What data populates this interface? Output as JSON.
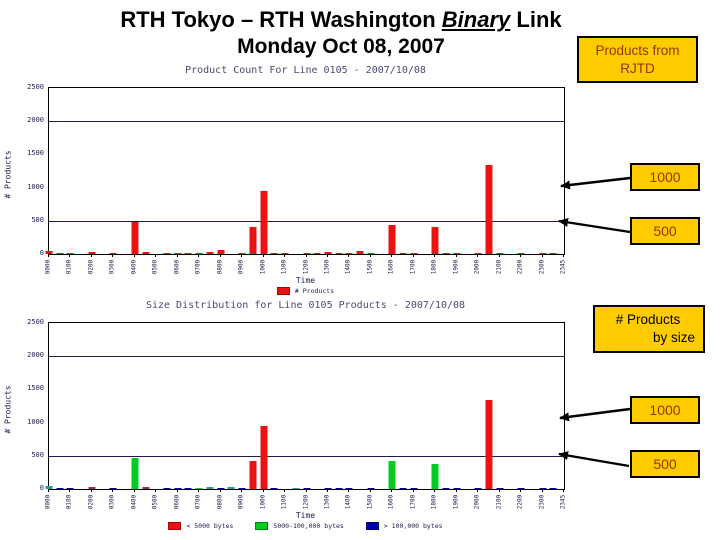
{
  "slide": {
    "title_prefix": "RTH Tokyo – RTH Washington ",
    "title_emphasis": "Binary",
    "title_suffix": " Link",
    "subtitle": "Monday Oct 08, 2007"
  },
  "annotations": {
    "products_from": {
      "line1": "Products from",
      "line2": "RJTD"
    },
    "count_1000_top": "1000",
    "count_500_top": "500",
    "by_size": {
      "line1": "# Products",
      "line2": "by size"
    },
    "count_1000_bottom": "1000",
    "count_500_bottom": "500",
    "box_fill": "#FFCC00",
    "box_text_color": "#993300"
  },
  "palette": {
    "red": "#EE1111",
    "green": "#00CC22",
    "blue": "#0000AA",
    "maroon": "#993344",
    "teal": "#2F9999"
  },
  "chart_data": [
    {
      "type": "bar",
      "title": "Product Count For Line 0105 - 2007/10/08",
      "xlabel": "Time",
      "ylabel": "# Products",
      "ylim": [
        0,
        2500
      ],
      "yticks": [
        0,
        500,
        1000,
        1500,
        2000,
        2500
      ],
      "gridlines": [
        500,
        2000
      ],
      "x_ticks": [
        "0000",
        "0100",
        "0200",
        "0300",
        "0400",
        "0500",
        "0600",
        "0700",
        "0800",
        "0900",
        "1000",
        "1100",
        "1200",
        "1300",
        "1400",
        "1500",
        "1600",
        "1700",
        "1800",
        "1900",
        "2000",
        "2100",
        "2200",
        "2300",
        "2345"
      ],
      "legend": [
        {
          "label": "# Products",
          "color": "red"
        }
      ],
      "bars": [
        {
          "time": "0000",
          "value": 45,
          "color": "red"
        },
        {
          "time": "0030",
          "value": 22,
          "color": "red"
        },
        {
          "time": "0100",
          "value": 18,
          "color": "red"
        },
        {
          "time": "0200",
          "value": 35,
          "color": "red"
        },
        {
          "time": "0300",
          "value": 10,
          "color": "red"
        },
        {
          "time": "0400",
          "value": 480,
          "color": "red"
        },
        {
          "time": "0430",
          "value": 35,
          "color": "red"
        },
        {
          "time": "0530",
          "value": 8,
          "color": "red"
        },
        {
          "time": "0600",
          "value": 15,
          "color": "red"
        },
        {
          "time": "0630",
          "value": 12,
          "color": "red"
        },
        {
          "time": "0700",
          "value": 18,
          "color": "red"
        },
        {
          "time": "0730",
          "value": 30,
          "color": "red"
        },
        {
          "time": "0800",
          "value": 55,
          "color": "red"
        },
        {
          "time": "0900",
          "value": 18,
          "color": "red"
        },
        {
          "time": "0930",
          "value": 400,
          "color": "red"
        },
        {
          "time": "1000",
          "value": 950,
          "color": "red"
        },
        {
          "time": "1030",
          "value": 12,
          "color": "red"
        },
        {
          "time": "1100",
          "value": 10,
          "color": "red"
        },
        {
          "time": "1200",
          "value": 18,
          "color": "red"
        },
        {
          "time": "1230",
          "value": 12,
          "color": "red"
        },
        {
          "time": "1300",
          "value": 28,
          "color": "red"
        },
        {
          "time": "1330",
          "value": 18,
          "color": "red"
        },
        {
          "time": "1400",
          "value": 12,
          "color": "red"
        },
        {
          "time": "1430",
          "value": 40,
          "color": "red"
        },
        {
          "time": "1500",
          "value": 18,
          "color": "red"
        },
        {
          "time": "1600",
          "value": 430,
          "color": "red"
        },
        {
          "time": "1630",
          "value": 18,
          "color": "red"
        },
        {
          "time": "1700",
          "value": 12,
          "color": "red"
        },
        {
          "time": "1800",
          "value": 400,
          "color": "red"
        },
        {
          "time": "1830",
          "value": 18,
          "color": "red"
        },
        {
          "time": "1900",
          "value": 8,
          "color": "red"
        },
        {
          "time": "2000",
          "value": 12,
          "color": "red"
        },
        {
          "time": "2030",
          "value": 1340,
          "color": "red"
        },
        {
          "time": "2100",
          "value": 10,
          "color": "red"
        },
        {
          "time": "2200",
          "value": 12,
          "color": "red"
        },
        {
          "time": "2300",
          "value": 18,
          "color": "red"
        },
        {
          "time": "2330",
          "value": 12,
          "color": "red"
        }
      ]
    },
    {
      "type": "bar",
      "title": "Size Distribution for Line 0105 Products - 2007/10/08",
      "xlabel": "Time",
      "ylabel": "# Products",
      "ylim": [
        0,
        2500
      ],
      "yticks": [
        0,
        500,
        1000,
        1500,
        2000,
        2500
      ],
      "gridlines": [
        500,
        2000
      ],
      "x_ticks": [
        "0000",
        "0100",
        "0200",
        "0300",
        "0400",
        "0500",
        "0600",
        "0700",
        "0800",
        "0900",
        "1000",
        "1100",
        "1200",
        "1300",
        "1400",
        "1500",
        "1600",
        "1700",
        "1800",
        "1900",
        "2000",
        "2100",
        "2200",
        "2300",
        "2345"
      ],
      "legend": [
        {
          "label": "< 5000 bytes",
          "color": "red"
        },
        {
          "label": "5000-100,000 bytes",
          "color": "green"
        },
        {
          "label": "> 100,000 bytes",
          "color": "blue"
        }
      ],
      "bars": [
        {
          "time": "0000",
          "value": 40,
          "color": "teal"
        },
        {
          "time": "0030",
          "value": 15,
          "color": "blue"
        },
        {
          "time": "0100",
          "value": 10,
          "color": "blue"
        },
        {
          "time": "0200",
          "value": 35,
          "color": "maroon"
        },
        {
          "time": "0300",
          "value": 10,
          "color": "blue"
        },
        {
          "time": "0400",
          "value": 467,
          "color": "green"
        },
        {
          "time": "0430",
          "value": 35,
          "color": "maroon"
        },
        {
          "time": "0530",
          "value": 10,
          "color": "blue"
        },
        {
          "time": "0600",
          "value": 10,
          "color": "blue"
        },
        {
          "time": "0630",
          "value": 12,
          "color": "blue"
        },
        {
          "time": "0700",
          "value": 20,
          "color": "green"
        },
        {
          "time": "0730",
          "value": 25,
          "color": "teal"
        },
        {
          "time": "0800",
          "value": 10,
          "color": "blue"
        },
        {
          "time": "0830",
          "value": 35,
          "color": "teal"
        },
        {
          "time": "0900",
          "value": 12,
          "color": "blue"
        },
        {
          "time": "0930",
          "value": 420,
          "color": "red"
        },
        {
          "time": "1000",
          "value": 950,
          "color": "red"
        },
        {
          "time": "1030",
          "value": 10,
          "color": "blue"
        },
        {
          "time": "1130",
          "value": 20,
          "color": "teal"
        },
        {
          "time": "1200",
          "value": 12,
          "color": "blue"
        },
        {
          "time": "1300",
          "value": 10,
          "color": "blue"
        },
        {
          "time": "1330",
          "value": 10,
          "color": "blue"
        },
        {
          "time": "1400",
          "value": 15,
          "color": "blue"
        },
        {
          "time": "1500",
          "value": 10,
          "color": "blue"
        },
        {
          "time": "1600",
          "value": 420,
          "color": "green"
        },
        {
          "time": "1630",
          "value": 12,
          "color": "blue"
        },
        {
          "time": "1700",
          "value": 10,
          "color": "blue"
        },
        {
          "time": "1800",
          "value": 375,
          "color": "green"
        },
        {
          "time": "1830",
          "value": 12,
          "color": "blue"
        },
        {
          "time": "1900",
          "value": 10,
          "color": "blue"
        },
        {
          "time": "2000",
          "value": 10,
          "color": "blue"
        },
        {
          "time": "2030",
          "value": 1340,
          "color": "red"
        },
        {
          "time": "2100",
          "value": 12,
          "color": "blue"
        },
        {
          "time": "2200",
          "value": 12,
          "color": "blue"
        },
        {
          "time": "2300",
          "value": 12,
          "color": "blue"
        },
        {
          "time": "2330",
          "value": 10,
          "color": "blue"
        }
      ]
    }
  ]
}
